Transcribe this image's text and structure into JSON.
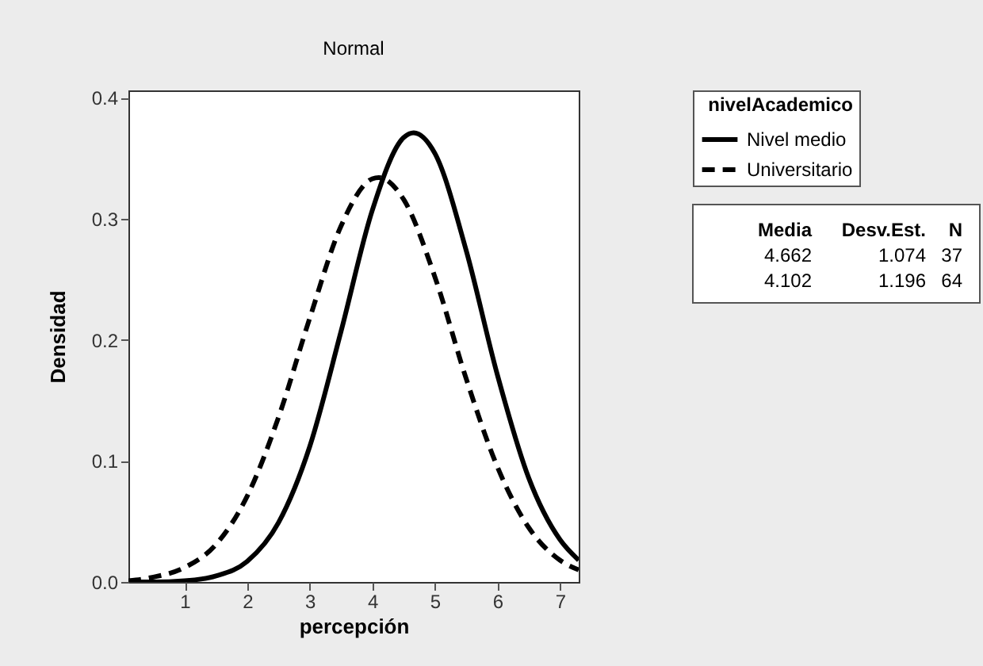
{
  "chart_data": {
    "type": "line",
    "title": "Normal",
    "xlabel": "percepción",
    "ylabel": "Densidad",
    "legend_title": "nivelAcademico",
    "legend": "top right",
    "xlim": [
      0.1,
      7.3
    ],
    "xticks": [
      1,
      2,
      3,
      4,
      5,
      6,
      7
    ],
    "ylim": [
      0,
      0.406
    ],
    "yticks": [
      {
        "value": 0,
        "label": "0.0"
      },
      0.1,
      0.2,
      0.3,
      0.4
    ],
    "grid": false,
    "series": [
      {
        "name": "Nivel medio",
        "color": "#000000",
        "line_style": "solid",
        "x": [
          0.1,
          0.5,
          1,
          1.5,
          2,
          2.5,
          3,
          3.5,
          4,
          4.5,
          4.662,
          5,
          5.5,
          6,
          6.5,
          7,
          7.3
        ],
        "values": [
          0.0,
          0.0,
          0.001,
          0.005,
          0.017,
          0.049,
          0.112,
          0.207,
          0.307,
          0.367,
          0.371,
          0.354,
          0.274,
          0.171,
          0.086,
          0.035,
          0.018
        ]
      },
      {
        "name": "Universitario",
        "color": "#000000",
        "line_style": "dashed",
        "x": [
          0.1,
          0.5,
          1,
          1.5,
          2,
          2.5,
          3,
          3.5,
          4,
          4.102,
          4.5,
          5,
          5.5,
          6,
          6.5,
          7,
          7.3
        ],
        "values": [
          0.001,
          0.004,
          0.012,
          0.031,
          0.071,
          0.136,
          0.218,
          0.294,
          0.333,
          0.334,
          0.316,
          0.252,
          0.168,
          0.095,
          0.045,
          0.018,
          0.01
        ]
      }
    ],
    "annotations": [
      "Media",
      "Desv.Est.",
      "N",
      "4.662",
      "1.074",
      "37",
      "4.102",
      "1.196",
      "64"
    ]
  }
}
